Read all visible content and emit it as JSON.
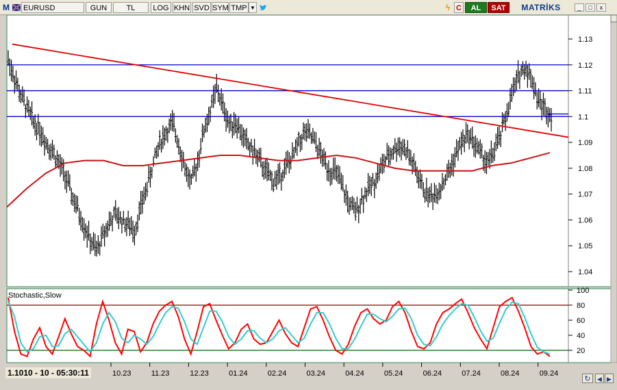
{
  "toolbar": {
    "app_logo": "M",
    "symbol": "EURUSD",
    "buttons": [
      "GUN",
      "TL",
      "LOG",
      "KHN",
      "SVD",
      "SYM",
      "TMP"
    ],
    "dropdown_icon": "chevron-down-icon",
    "share_icon": "twitter-bird-icon",
    "lightning_icon": "lightning-icon",
    "c_label": "C",
    "buy_label": "AL",
    "sell_label": "SAT",
    "brand": "MATRİKS",
    "window_buttons": [
      "_",
      "□",
      "x"
    ]
  },
  "colors": {
    "plot_bg": "#ffffff",
    "candles": "#000000",
    "trend_line": "#e00000",
    "moving_average": "#cc1111",
    "horizontal_lines": "#0000cc",
    "stoch_k": "#ff0000",
    "stoch_d": "#33cccc",
    "level_80": "#8b0000",
    "level_20": "#006400",
    "frame": "#2e8b57"
  },
  "chart_data": [
    {
      "type": "candlestick",
      "symbol": "EURUSD",
      "y_ticks": [
        "1.13",
        "1.12",
        "1.11",
        "1.1",
        "1.09",
        "1.08",
        "1.07",
        "1.06",
        "1.05",
        "1.04"
      ],
      "ylim": [
        1.035,
        1.135
      ],
      "x_ticks": [
        "10.23",
        "11.23",
        "12.23",
        "01.24",
        "02.24",
        "03.24",
        "04.24",
        "05.24",
        "06.24",
        "07.24",
        "08.24",
        "09.24"
      ],
      "horizontal_levels": [
        1.12,
        1.11,
        1.1
      ],
      "last_value": 1.101,
      "trend_line": {
        "start": 1.128,
        "end": 1.092
      },
      "moving_average": [
        1.065,
        1.072,
        1.078,
        1.082,
        1.083,
        1.083,
        1.081,
        1.081,
        1.082,
        1.083,
        1.084,
        1.085,
        1.085,
        1.084,
        1.083,
        1.083,
        1.084,
        1.085,
        1.084,
        1.082,
        1.08,
        1.079,
        1.079,
        1.079,
        1.079,
        1.081,
        1.082,
        1.084,
        1.086
      ],
      "closes": [
        1.122,
        1.115,
        1.108,
        1.103,
        1.098,
        1.095,
        1.09,
        1.087,
        1.082,
        1.077,
        1.07,
        1.064,
        1.058,
        1.052,
        1.048,
        1.054,
        1.059,
        1.062,
        1.06,
        1.058,
        1.056,
        1.065,
        1.073,
        1.082,
        1.09,
        1.094,
        1.097,
        1.09,
        1.08,
        1.074,
        1.083,
        1.095,
        1.102,
        1.111,
        1.104,
        1.097,
        1.098,
        1.093,
        1.089,
        1.086,
        1.082,
        1.078,
        1.075,
        1.077,
        1.081,
        1.084,
        1.09,
        1.094,
        1.092,
        1.088,
        1.083,
        1.079,
        1.078,
        1.072,
        1.066,
        1.063,
        1.068,
        1.072,
        1.075,
        1.08,
        1.084,
        1.087,
        1.089,
        1.087,
        1.082,
        1.076,
        1.071,
        1.069,
        1.071,
        1.075,
        1.08,
        1.086,
        1.091,
        1.093,
        1.089,
        1.085,
        1.082,
        1.087,
        1.093,
        1.102,
        1.11,
        1.117,
        1.119,
        1.114,
        1.106,
        1.103,
        1.101
      ]
    },
    {
      "type": "line",
      "title": "Stochastic,Slow",
      "y_ticks": [
        "100",
        "80",
        "60",
        "40",
        "20"
      ],
      "ylim": [
        0,
        100
      ],
      "levels": [
        80,
        20
      ],
      "series": [
        {
          "values": [
            90,
            45,
            15,
            12,
            35,
            50,
            25,
            15,
            38,
            62,
            42,
            25,
            20,
            12,
            55,
            85,
            60,
            30,
            15,
            48,
            45,
            18,
            30,
            55,
            72,
            80,
            85,
            65,
            35,
            15,
            45,
            78,
            82,
            60,
            40,
            22,
            30,
            48,
            55,
            35,
            28,
            30,
            45,
            60,
            42,
            30,
            25,
            50,
            75,
            78,
            60,
            38,
            20,
            15,
            28,
            52,
            70,
            75,
            62,
            55,
            60,
            78,
            85,
            70,
            45,
            25,
            22,
            30,
            55,
            70,
            75,
            82,
            88,
            70,
            50,
            35,
            22,
            50,
            78,
            85,
            90,
            72,
            50,
            25,
            15,
            18,
            12
          ]
        },
        {
          "values": [
            85,
            65,
            30,
            18,
            22,
            38,
            40,
            25,
            26,
            42,
            48,
            38,
            28,
            18,
            30,
            55,
            70,
            58,
            36,
            30,
            40,
            35,
            28,
            38,
            55,
            70,
            78,
            76,
            58,
            35,
            28,
            50,
            72,
            72,
            58,
            38,
            28,
            35,
            46,
            46,
            36,
            30,
            35,
            46,
            50,
            40,
            30,
            36,
            55,
            70,
            70,
            55,
            36,
            22,
            22,
            35,
            52,
            68,
            68,
            62,
            58,
            65,
            75,
            76,
            62,
            40,
            28,
            26,
            38,
            55,
            66,
            75,
            82,
            80,
            64,
            46,
            32,
            36,
            56,
            74,
            84,
            82,
            64,
            42,
            24,
            18,
            15
          ]
        }
      ]
    }
  ],
  "status": {
    "bottom_readout": "1.1010 - 10 - 05:30:11"
  },
  "nav": {
    "refresh_icon": "refresh-icon",
    "prev_icon": "arrow-left-icon",
    "next_icon": "arrow-right-icon"
  }
}
